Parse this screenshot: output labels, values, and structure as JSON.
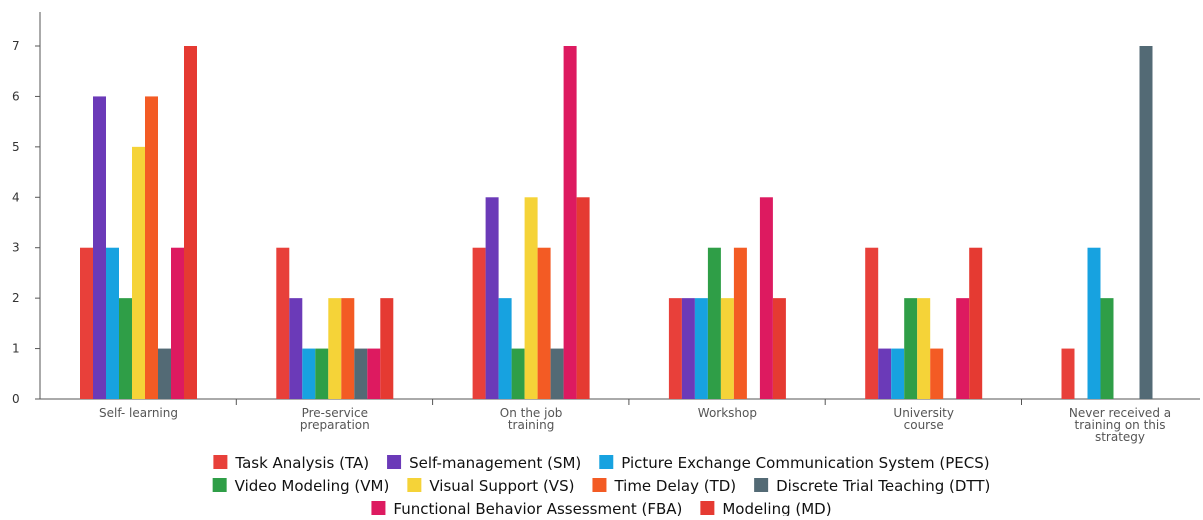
{
  "chart_data": {
    "type": "bar",
    "title": "",
    "xlabel": "",
    "ylabel": "",
    "ylim": [
      0,
      7
    ],
    "yticks": [
      0,
      1,
      2,
      3,
      4,
      5,
      6,
      7
    ],
    "categories": [
      [
        "Self- learning"
      ],
      [
        "Pre-service",
        "preparation"
      ],
      [
        "On the job",
        "training"
      ],
      [
        "Workshop"
      ],
      [
        "University",
        "course"
      ],
      [
        "Never received a",
        "training on this",
        "strategy"
      ]
    ],
    "series": [
      {
        "name": "Task Analysis (TA)",
        "color": "#e8403a",
        "values": [
          3,
          3,
          3,
          2,
          3,
          1
        ]
      },
      {
        "name": "Self-management (SM)",
        "color": "#6b3ab8",
        "values": [
          6,
          2,
          4,
          2,
          1,
          0
        ]
      },
      {
        "name": "Picture Exchange Communication System (PECS)",
        "color": "#17a2e0",
        "values": [
          3,
          1,
          2,
          2,
          1,
          3
        ]
      },
      {
        "name": "Video Modeling (VM)",
        "color": "#2f9e47",
        "values": [
          2,
          1,
          1,
          3,
          2,
          2
        ]
      },
      {
        "name": "Visual Support (VS)",
        "color": "#f5d338",
        "values": [
          5,
          2,
          4,
          2,
          2,
          0
        ]
      },
      {
        "name": "Time Delay (TD)",
        "color": "#f35b24",
        "values": [
          6,
          2,
          3,
          3,
          1,
          0
        ]
      },
      {
        "name": "Discrete Trial Teaching (DTT)",
        "color": "#536a75",
        "values": [
          1,
          1,
          1,
          0,
          0,
          7
        ]
      },
      {
        "name": "Functional Behavior Assessment (FBA)",
        "color": "#dd1a60",
        "values": [
          3,
          1,
          7,
          4,
          2,
          0
        ]
      },
      {
        "name": "Modeling (MD)",
        "color": "#e53a32",
        "values": [
          7,
          2,
          4,
          2,
          3,
          0
        ]
      }
    ],
    "legend": {
      "position": "bottom",
      "rows": [
        [
          0,
          1,
          2
        ],
        [
          3,
          4,
          5,
          6
        ],
        [
          7,
          8
        ]
      ]
    },
    "grid": false
  }
}
